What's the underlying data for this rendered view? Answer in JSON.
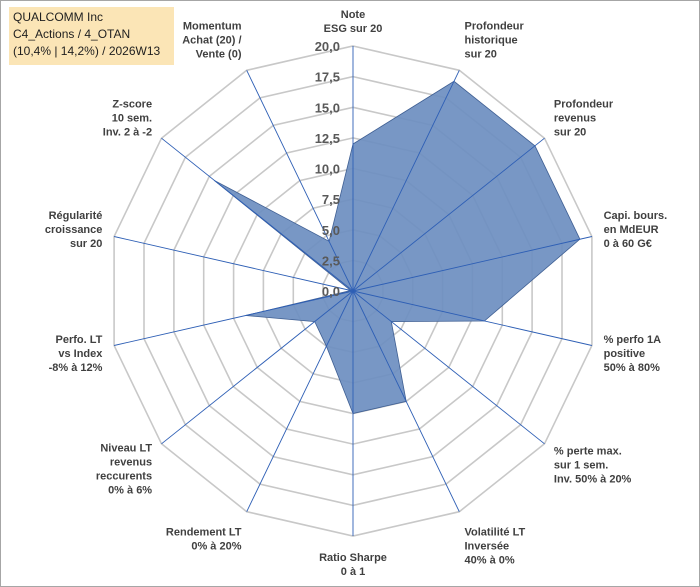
{
  "title": {
    "line1": "QUALCOMM Inc",
    "line2": "C4_Actions / 4_OTAN",
    "line3": "(10,4% | 14,2%) / 2026W13"
  },
  "colors": {
    "area": "#6e8fc1",
    "title_bg": "#fbe5b6",
    "spokes": "#2e5fb5",
    "rings": "#c8c8c8"
  },
  "chart_data": {
    "type": "radar",
    "r_range": [
      0,
      20
    ],
    "ticks": [
      "0,0",
      "2,5",
      "5,0",
      "7,5",
      "10,0",
      "12,5",
      "15,0",
      "17,5",
      "20,0"
    ],
    "axes": [
      {
        "label": [
          "Note",
          "ESG sur 20"
        ],
        "value": 12.0
      },
      {
        "label": [
          "Profondeur",
          "historique",
          "sur 20"
        ],
        "value": 19.0
      },
      {
        "label": [
          "Profondeur",
          "revenus",
          "sur 20"
        ],
        "value": 19.0
      },
      {
        "label": [
          "Capi. bours.",
          "en MdEUR",
          "0 à 60 G€"
        ],
        "value": 19.0
      },
      {
        "label": [
          "% perfo 1A",
          "positive",
          "50% à 80%"
        ],
        "value": 11.0
      },
      {
        "label": [
          "% perte max.",
          "sur 1 sem.",
          "Inv. 50% à 20%"
        ],
        "value": 4.0
      },
      {
        "label": [
          "Volatilité LT",
          "Inversée",
          "40% à 0%"
        ],
        "value": 10.0
      },
      {
        "label": [
          "Ratio Sharpe",
          "0 à 1"
        ],
        "value": 10.0
      },
      {
        "label": [
          "Rendement LT",
          "0% à 20%"
        ],
        "value": 5.0
      },
      {
        "label": [
          "Niveau LT",
          "revenus",
          "reccurents",
          "0% à 6%"
        ],
        "value": 4.0
      },
      {
        "label": [
          "Perfo. LT",
          "vs Index",
          "-8% à 12%"
        ],
        "value": 9.0
      },
      {
        "label": [
          "Régularité",
          "croissance",
          "sur 20"
        ],
        "value": 0.2
      },
      {
        "label": [
          "Z-score",
          "10 sem.",
          "Inv. 2 à -2"
        ],
        "value": 14.5
      },
      {
        "label": [
          "Momentum",
          "Achat (20) /",
          "Vente (0)"
        ],
        "value": 4.5
      }
    ]
  }
}
